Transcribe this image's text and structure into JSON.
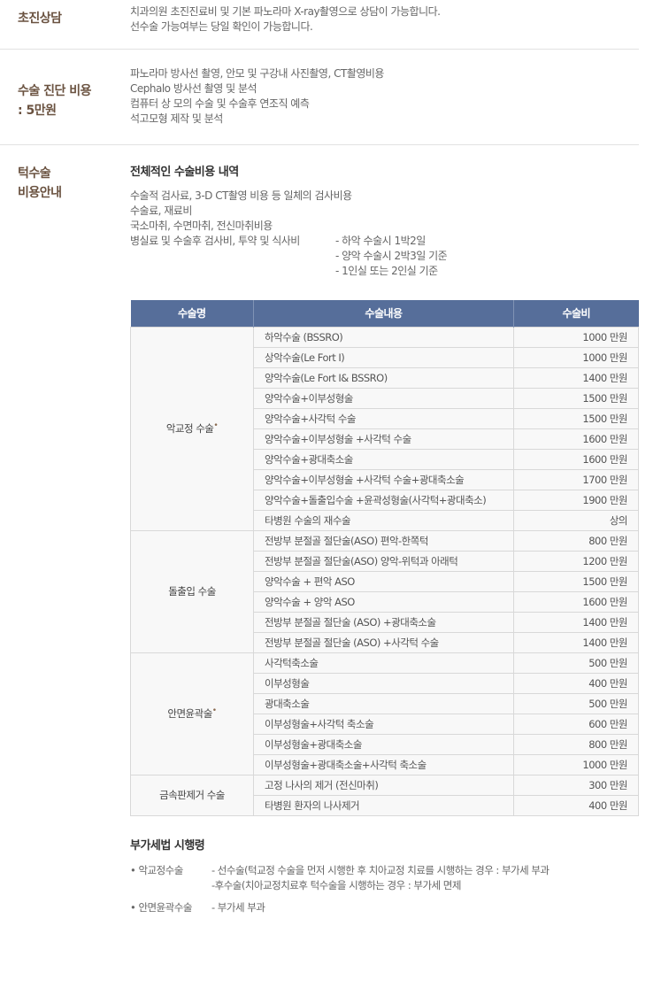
{
  "consult": {
    "label": "초진상담",
    "lines": [
      "치과의원 초진진료비 및 기본 파노라마 X-ray촬영으로 상담이 가능합니다.",
      "선수술 가능여부는 당일 확인이 가능합니다."
    ]
  },
  "diag": {
    "label1": "수술 진단 비용",
    "label2": ": 5만원",
    "lines": [
      "파노라마 방사선 촬영, 안모 및 구강내 사진촬영, CT촬영비용",
      "Cephalo 방사선 촬영 및 분석",
      "컴퓨터 상 모의 수술 및 수술후 연조직 예측",
      "석고모형 제작 및 분석"
    ]
  },
  "cost": {
    "label1": "턱수술",
    "label2": "비용안내",
    "subtitle": "전체적인 수술비용 내역",
    "lines": [
      "수술적 검사료, 3-D CT촬영 비용 등 일체의 검사비용",
      "수술료, 재료비",
      "국소마취, 수면마취, 전신마취비용",
      "병실료 및 수술후 검사비, 투약 및 식사비"
    ],
    "notes": [
      "- 하악 수술시 1박2일",
      "- 양악 수술시 2박3일 기준",
      "- 1인실 또는 2인실 기준"
    ]
  },
  "table": {
    "headers": [
      "수술명",
      "수술내용",
      "수술비"
    ],
    "groups": [
      {
        "name": "악교정 수술",
        "mark": "•",
        "rows": [
          [
            "하악수술 (BSSRO)",
            "1000 만원"
          ],
          [
            "상악수술(Le Fort Ⅰ)",
            "1000 만원"
          ],
          [
            "양악수술(Le Fort Ⅰ& BSSRO)",
            "1400 만원"
          ],
          [
            "양악수술+이부성형술",
            "1500 만원"
          ],
          [
            "양악수술+사각턱 수술",
            "1500 만원"
          ],
          [
            "양악수술+이부성형술 +사각턱 수술",
            "1600 만원"
          ],
          [
            "양악수술+광대축소술",
            "1600 만원"
          ],
          [
            "양악수술+이부성형술 +사각턱 수술+광대축소술",
            "1700 만원"
          ],
          [
            "양악수술+돌출입수술 +윤곽성형술(사각턱+광대축소)",
            "1900 만원"
          ],
          [
            "타병원 수술의 재수술",
            "상의"
          ]
        ]
      },
      {
        "name": "돌출입 수술",
        "mark": "",
        "rows": [
          [
            "전방부 분절골 절단술(ASO) 편악-한쪽턱",
            "800 만원"
          ],
          [
            "전방부 분절골 절단술(ASO) 양악-위턱과 아래턱",
            "1200 만원"
          ],
          [
            "양악수술 + 편악 ASO",
            "1500 만원"
          ],
          [
            "양악수술 + 양악 ASO",
            "1600 만원"
          ],
          [
            "전방부 분절골 절단술 (ASO) +광대축소술",
            "1400 만원"
          ],
          [
            "전방부 분절골 절단술 (ASO) +사각턱 수술",
            "1400 만원"
          ]
        ]
      },
      {
        "name": "안면윤곽술",
        "mark": "•",
        "rows": [
          [
            "사각턱축소술",
            "500 만원"
          ],
          [
            "이부성형술",
            "400 만원"
          ],
          [
            "광대축소술",
            "500 만원"
          ],
          [
            "이부성형술+사각턱 축소술",
            "600 만원"
          ],
          [
            "이부성형술+광대축소술",
            "800 만원"
          ],
          [
            "이부성형술+광대축소술+사각턱 축소술",
            "1000 만원"
          ]
        ]
      },
      {
        "name": "금속판제거 수술",
        "mark": "",
        "rows": [
          [
            "고정 나사의 제거 (전신마취)",
            "300 만원"
          ],
          [
            "타병원 환자의 나사제거",
            "400 만원"
          ]
        ]
      }
    ]
  },
  "vat": {
    "title": "부가세법 시행령",
    "items": [
      {
        "key": "• 악교정수술",
        "vals": [
          "- 선수술(턱교정 수술을 먼저 시행한 후 치아교정 치료를 시행하는 경우 : 부가세 부과",
          "-후수술(치아교정치료후 턱수술을 시행하는 경우 : 부가세 면제"
        ]
      },
      {
        "key": "• 안면윤곽수술",
        "vals": [
          "- 부가세 부과"
        ]
      }
    ]
  }
}
